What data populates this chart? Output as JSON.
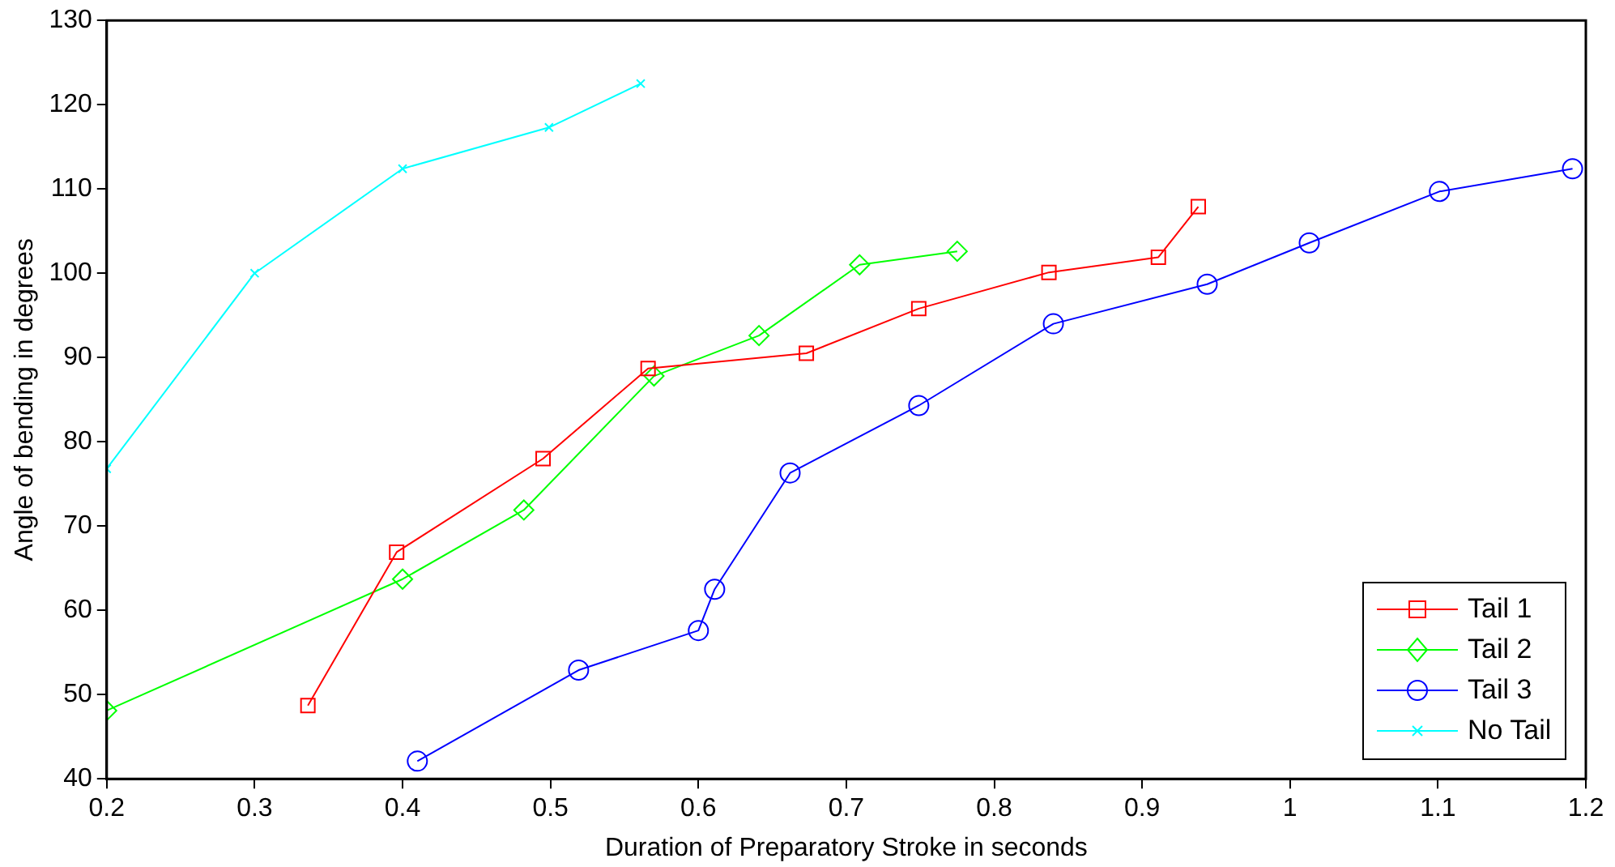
{
  "chart_data": {
    "type": "line",
    "xlabel": "Duration of Preparatory Stroke in seconds",
    "ylabel": "Angle of bending in degrees",
    "xlim": [
      0.2,
      1.2
    ],
    "xticks": [
      0.2,
      0.3,
      0.4,
      0.5,
      0.6,
      0.7,
      0.8,
      0.9,
      1,
      1.1,
      1.2
    ],
    "ylim": [
      40,
      130
    ],
    "yticks": [
      40,
      50,
      60,
      70,
      80,
      90,
      100,
      110,
      120,
      130
    ],
    "grid": false,
    "legend": "bottom right",
    "line_style": "solid",
    "series": [
      {
        "name": "Tail 1",
        "color": "#ff0000",
        "marker": "square",
        "x": [
          0.336,
          0.396,
          0.495,
          0.566,
          0.673,
          0.749,
          0.837,
          0.911,
          0.938
        ],
        "values": [
          48.7,
          66.9,
          78.0,
          88.7,
          90.5,
          95.8,
          100.1,
          101.9,
          107.9
        ]
      },
      {
        "name": "Tail 2",
        "color": "#00ff00",
        "marker": "diamond",
        "x": [
          0.2,
          0.4,
          0.482,
          0.57,
          0.641,
          0.709,
          0.775
        ],
        "values": [
          48.1,
          63.7,
          71.9,
          87.8,
          92.6,
          101.0,
          102.6
        ]
      },
      {
        "name": "Tail 3",
        "color": "#0000ff",
        "marker": "circle",
        "x": [
          0.41,
          0.519,
          0.6,
          0.611,
          0.662,
          0.749,
          0.84,
          0.944,
          1.013,
          1.101,
          1.191
        ],
        "values": [
          42.1,
          52.9,
          57.6,
          62.5,
          76.3,
          84.3,
          94.0,
          98.7,
          103.6,
          109.7,
          112.4
        ]
      },
      {
        "name": "No Tail",
        "color": "#00ffff",
        "marker": "cross",
        "x": [
          0.2,
          0.3,
          0.4,
          0.499,
          0.561
        ],
        "values": [
          76.8,
          100,
          112.4,
          117.3,
          122.5
        ]
      }
    ]
  }
}
